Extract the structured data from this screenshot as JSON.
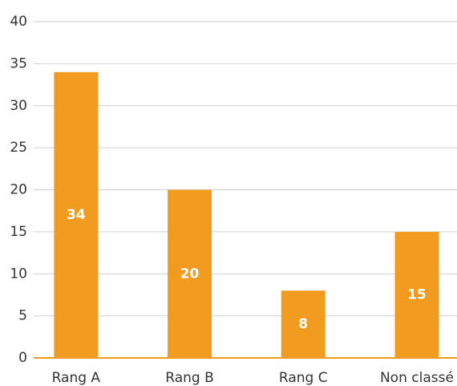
{
  "chart_data": {
    "type": "bar",
    "categories": [
      "Rang A",
      "Rang B",
      "Rang C",
      "Non classé"
    ],
    "values": [
      34,
      20,
      8,
      15
    ],
    "color": "#f19b20",
    "ylim": [
      0,
      40
    ],
    "yticks": [
      0,
      5,
      10,
      15,
      20,
      25,
      30,
      35,
      40
    ],
    "grid": true
  }
}
